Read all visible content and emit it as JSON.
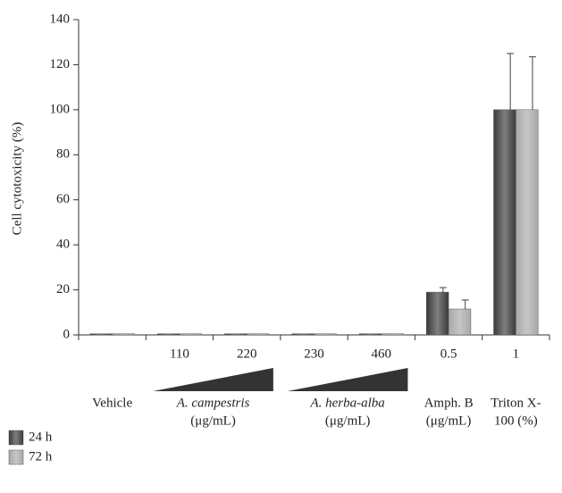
{
  "chart_data": {
    "type": "bar",
    "y_label": "Cell cytotoxicity (%)",
    "categories": [
      null,
      "110",
      "220",
      "230",
      "460",
      "0.5",
      "1"
    ],
    "series": [
      {
        "name": "24 h",
        "color": "#3a3a3a",
        "values": [
          0.5,
          0.5,
          0.5,
          0.5,
          0.5,
          19,
          100
        ],
        "errors": [
          null,
          null,
          null,
          null,
          null,
          2,
          25
        ]
      },
      {
        "name": "72 h",
        "color": "#a8a8a8",
        "values": [
          0.5,
          0.5,
          0.5,
          0.5,
          0.5,
          11.5,
          100
        ],
        "errors": [
          null,
          null,
          null,
          null,
          null,
          4,
          23.5
        ]
      }
    ],
    "groups": [
      {
        "lines": [
          "Vehicle"
        ],
        "from": 0,
        "to": 0
      },
      {
        "lines": [
          "A. campestris",
          "(μg/mL)"
        ],
        "from": 1,
        "to": 2
      },
      {
        "lines": [
          "A. herba-alba",
          "(μg/mL)"
        ],
        "from": 3,
        "to": 4
      },
      {
        "lines": [
          "Amph. B",
          "(μg/mL)"
        ],
        "from": 5,
        "to": 5
      },
      {
        "lines": [
          "Triton X-",
          "100 (%)"
        ],
        "from": 6,
        "to": 6
      }
    ],
    "ylim": [
      0,
      140
    ],
    "yticks": [
      0,
      20,
      40,
      60,
      80,
      100,
      120,
      140
    ]
  }
}
